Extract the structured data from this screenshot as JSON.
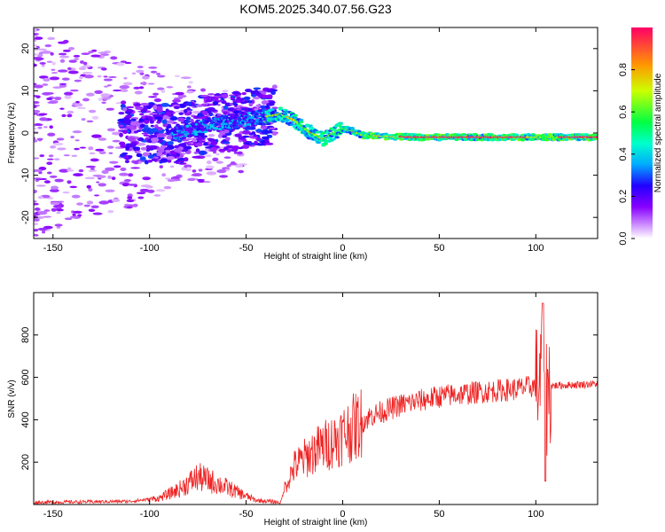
{
  "title": "KOM5.2025.340.07.56.G23",
  "chart_data": [
    {
      "type": "heatmap",
      "title": "KOM5.2025.340.07.56.G23",
      "xlabel": "Height of straight line (km)",
      "ylabel": "Frequency (Hz)",
      "xlim": [
        -160,
        132
      ],
      "ylim": [
        -25,
        25
      ],
      "x_ticks": [
        -150,
        -100,
        -50,
        0,
        50,
        100
      ],
      "y_ticks": [
        -20,
        -10,
        0,
        10,
        20
      ],
      "colorbar": {
        "label": "Normalized spectral amplitude",
        "range": [
          0,
          1
        ],
        "ticks": [
          0.0,
          0.2,
          0.4,
          0.6,
          0.8
        ],
        "colors": [
          "#ffffff",
          "#cc88ff",
          "#7700ff",
          "#0000ff",
          "#00ccff",
          "#00ff66",
          "#ccff00",
          "#ff8800",
          "#ff0044"
        ]
      },
      "ridge": {
        "x": [
          -85,
          -70,
          -55,
          -45,
          -38,
          -32,
          -25,
          -18,
          -10,
          -5,
          0,
          5,
          10,
          20,
          40,
          60,
          80,
          100,
          110,
          132
        ],
        "freq_hz": [
          0,
          2,
          3,
          3.5,
          4,
          4.5,
          3,
          0.5,
          -1.5,
          0,
          1,
          0.5,
          -0.5,
          -0.8,
          -1,
          -1,
          -1,
          -1,
          -1,
          -1
        ]
      }
    },
    {
      "type": "line",
      "xlabel": "Height of straight line (km)",
      "ylabel": "SNR (v/v)",
      "xlim": [
        -160,
        132
      ],
      "ylim": [
        0,
        1000
      ],
      "x_ticks": [
        -150,
        -100,
        -50,
        0,
        50,
        100
      ],
      "y_ticks": [
        200,
        400,
        600,
        800
      ],
      "color": "#ee2222",
      "envelope": {
        "x": [
          -160,
          -110,
          -95,
          -85,
          -75,
          -65,
          -55,
          -45,
          -32,
          -30,
          -25,
          -15,
          -5,
          5,
          15,
          30,
          50,
          70,
          90,
          100,
          103,
          104,
          106,
          108,
          120,
          132
        ],
        "snr": [
          10,
          15,
          30,
          70,
          130,
          100,
          60,
          20,
          10,
          80,
          180,
          250,
          300,
          360,
          420,
          470,
          510,
          530,
          545,
          560,
          600,
          400,
          540,
          560,
          565,
          570
        ]
      }
    }
  ]
}
